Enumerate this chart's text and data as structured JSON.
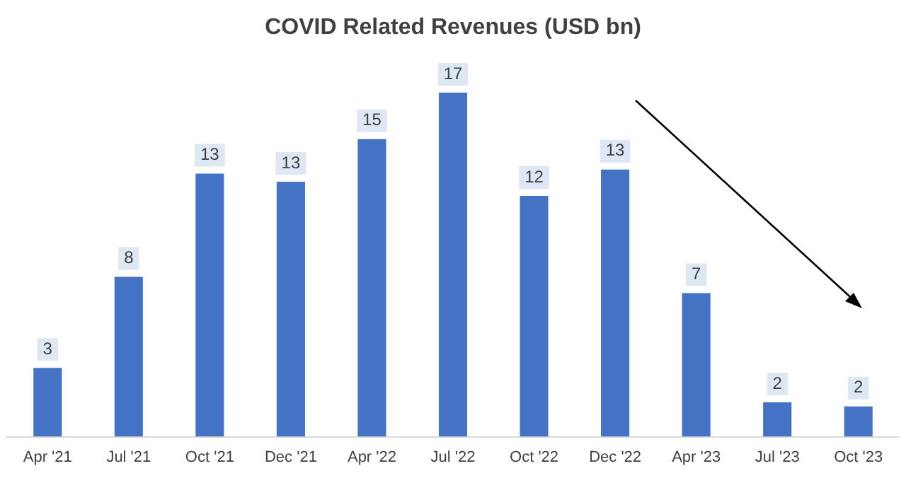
{
  "chart_data": {
    "type": "bar",
    "title": "COVID Related Revenues (USD bn)",
    "categories": [
      "Apr '21",
      "Jul '21",
      "Oct '21",
      "Dec '21",
      "Apr '22",
      "Jul '22",
      "Oct '22",
      "Dec '22",
      "Apr '23",
      "Jul '23",
      "Oct '23"
    ],
    "values": [
      3.4,
      7.9,
      13.0,
      12.6,
      14.7,
      17.0,
      11.9,
      13.2,
      7.1,
      1.7,
      1.5
    ],
    "value_labels": [
      "3",
      "8",
      "13",
      "13",
      "15",
      "17",
      "12",
      "13",
      "7",
      "2",
      "2"
    ],
    "color": "#4472c4",
    "grid": false,
    "legend": false,
    "tick_labels": "x"
  }
}
